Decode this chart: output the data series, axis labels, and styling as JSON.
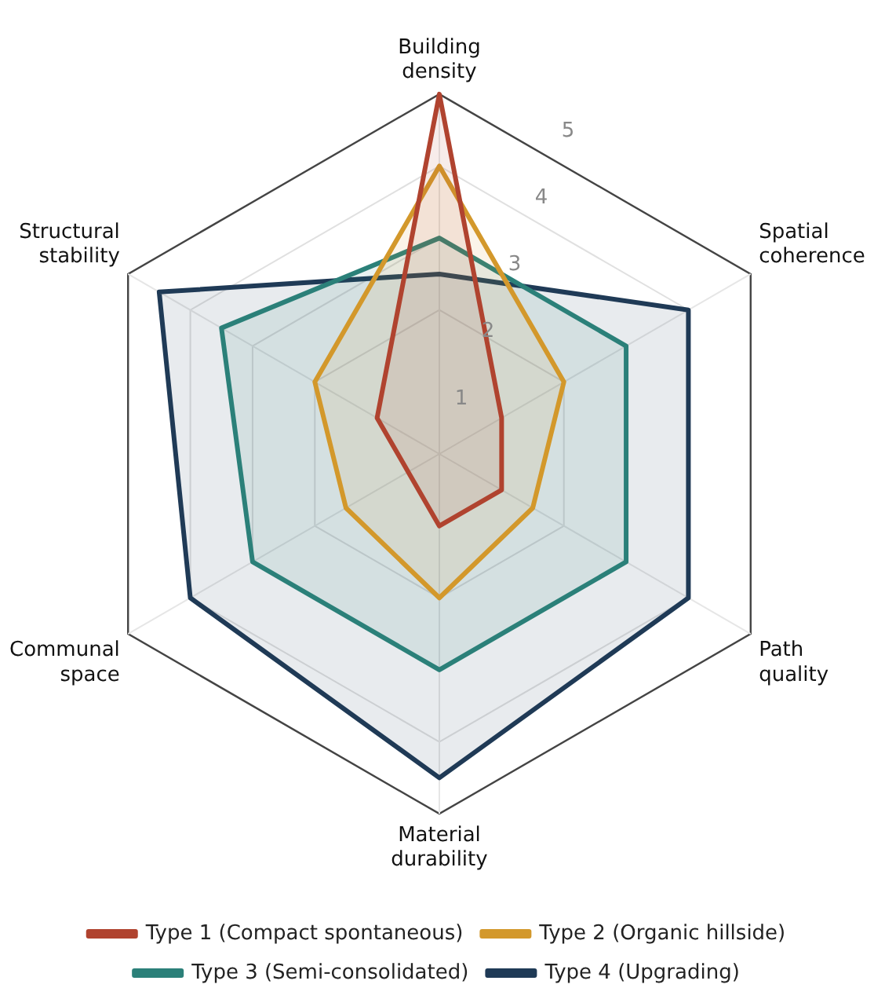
{
  "chart_data": {
    "type": "radar",
    "categories": [
      "Building density",
      "Spatial coherence",
      "Path quality",
      "Material durability",
      "Communal space",
      "Structural stability"
    ],
    "series": [
      {
        "name": "Type 1 (Compact spontaneous)",
        "color": "#b0432f",
        "values": [
          5,
          1,
          1,
          1,
          0.5,
          1
        ]
      },
      {
        "name": "Type 2 (Organic hillside)",
        "color": "#d3982b",
        "values": [
          4,
          2,
          1.5,
          2,
          1.5,
          2
        ]
      },
      {
        "name": "Type 3 (Semi-consolidated)",
        "color": "#2b8079",
        "values": [
          3,
          3,
          3,
          3,
          3,
          3.5
        ]
      },
      {
        "name": "Type 4 (Upgrading)",
        "color": "#1f3a56",
        "values": [
          2.5,
          4,
          4,
          4.5,
          4,
          4.5
        ]
      }
    ],
    "ylim": [
      0,
      5
    ],
    "yticks": [
      1,
      2,
      3,
      4,
      5
    ],
    "grid": true,
    "legend": "bottom",
    "marker": "none",
    "line_style": "solid"
  }
}
